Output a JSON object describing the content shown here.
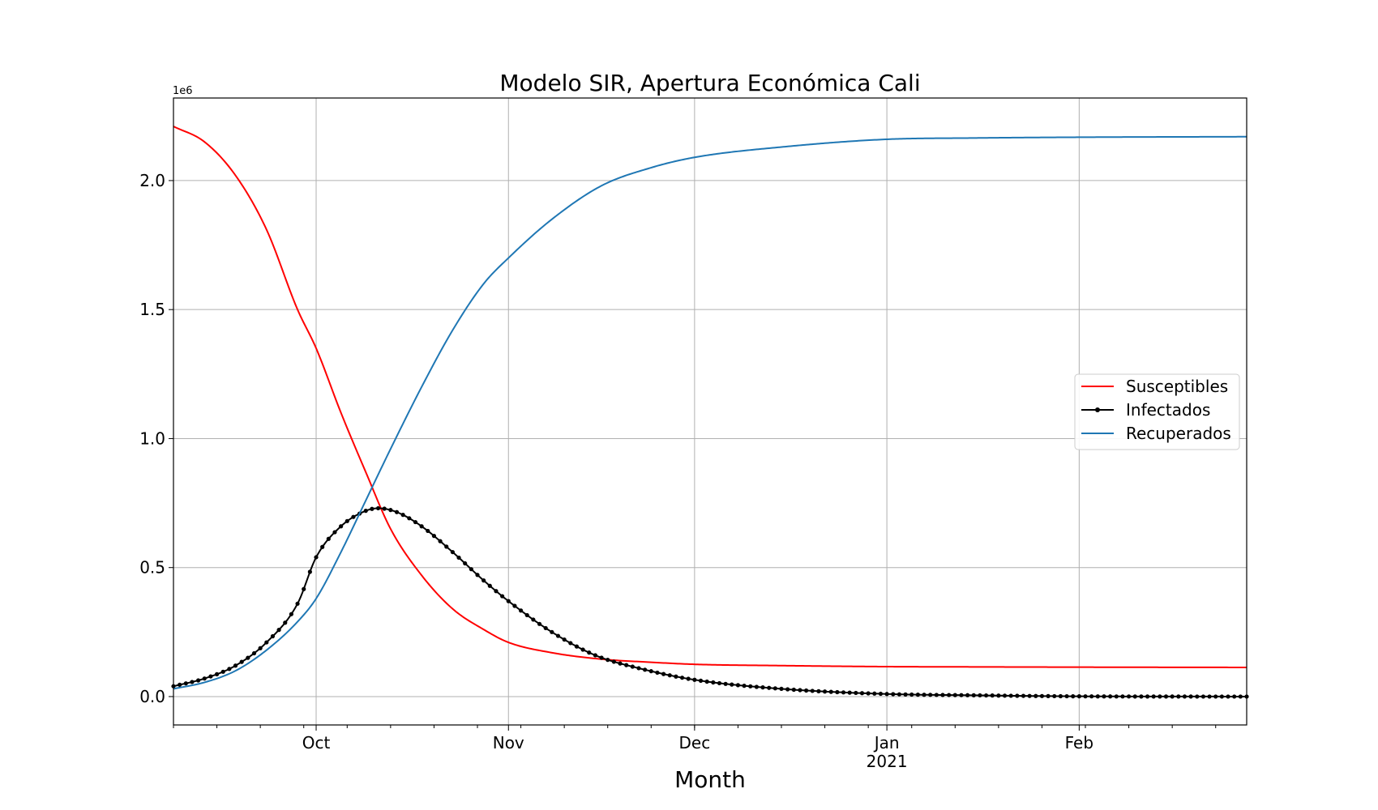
{
  "chart_data": {
    "type": "line",
    "title": "Modelo SIR, Apertura Económica Cali",
    "xlabel": "Month",
    "ylabel": "",
    "y_offset_label": "1e6",
    "x_start": "2020-09-08",
    "x_end": "2021-02-28",
    "xlim": [
      "2020-09-08",
      "2021-02-28"
    ],
    "ylim": [
      -110000,
      2320000
    ],
    "grid": true,
    "legend_position": "center-right",
    "y_ticks": [
      {
        "value": 0,
        "label": "0.0"
      },
      {
        "value": 500000,
        "label": "0.5"
      },
      {
        "value": 1000000,
        "label": "1.0"
      },
      {
        "value": 1500000,
        "label": "1.5"
      },
      {
        "value": 2000000,
        "label": "2.0"
      }
    ],
    "x_major_ticks": [
      {
        "date": "2020-10-01",
        "label": "Oct",
        "sublabel": ""
      },
      {
        "date": "2020-11-01",
        "label": "Nov",
        "sublabel": ""
      },
      {
        "date": "2020-12-01",
        "label": "Dec",
        "sublabel": ""
      },
      {
        "date": "2021-01-01",
        "label": "Jan",
        "sublabel": "2021"
      },
      {
        "date": "2021-02-01",
        "label": "Feb",
        "sublabel": ""
      }
    ],
    "series": [
      {
        "name": "Susceptibles",
        "color": "#ff0000",
        "marker": false,
        "points": [
          [
            "2020-09-08",
            2210000
          ],
          [
            "2020-09-13",
            2150000
          ],
          [
            "2020-09-18",
            2020000
          ],
          [
            "2020-09-23",
            1810000
          ],
          [
            "2020-09-28",
            1500000
          ],
          [
            "2020-10-01",
            1350000
          ],
          [
            "2020-10-05",
            1100000
          ],
          [
            "2020-10-09",
            870000
          ],
          [
            "2020-10-13",
            650000
          ],
          [
            "2020-10-18",
            470000
          ],
          [
            "2020-10-23",
            340000
          ],
          [
            "2020-10-28",
            260000
          ],
          [
            "2020-11-01",
            210000
          ],
          [
            "2020-11-08",
            170000
          ],
          [
            "2020-11-16",
            145000
          ],
          [
            "2020-11-24",
            133000
          ],
          [
            "2020-12-01",
            125000
          ],
          [
            "2020-12-15",
            120000
          ],
          [
            "2021-01-01",
            116000
          ],
          [
            "2021-01-15",
            115000
          ],
          [
            "2021-02-01",
            114000
          ],
          [
            "2021-02-28",
            113000
          ]
        ]
      },
      {
        "name": "Infectados",
        "color": "#000000",
        "marker": true,
        "points": [
          [
            "2020-09-08",
            40000
          ],
          [
            "2020-09-13",
            70000
          ],
          [
            "2020-09-18",
            120000
          ],
          [
            "2020-09-23",
            210000
          ],
          [
            "2020-09-28",
            360000
          ],
          [
            "2020-10-01",
            540000
          ],
          [
            "2020-10-05",
            660000
          ],
          [
            "2020-10-09",
            720000
          ],
          [
            "2020-10-11",
            730000
          ],
          [
            "2020-10-14",
            715000
          ],
          [
            "2020-10-18",
            660000
          ],
          [
            "2020-10-23",
            560000
          ],
          [
            "2020-10-28",
            450000
          ],
          [
            "2020-11-01",
            370000
          ],
          [
            "2020-11-08",
            250000
          ],
          [
            "2020-11-15",
            160000
          ],
          [
            "2020-11-22",
            110000
          ],
          [
            "2020-12-01",
            65000
          ],
          [
            "2020-12-15",
            30000
          ],
          [
            "2021-01-01",
            10000
          ],
          [
            "2021-01-15",
            5000
          ],
          [
            "2021-02-01",
            1000
          ],
          [
            "2021-02-28",
            0
          ]
        ]
      },
      {
        "name": "Recuperados",
        "color": "#1f77b4",
        "marker": false,
        "points": [
          [
            "2020-09-08",
            30000
          ],
          [
            "2020-09-13",
            55000
          ],
          [
            "2020-09-18",
            100000
          ],
          [
            "2020-09-23",
            180000
          ],
          [
            "2020-09-28",
            290000
          ],
          [
            "2020-10-01",
            380000
          ],
          [
            "2020-10-05",
            560000
          ],
          [
            "2020-10-09",
            760000
          ],
          [
            "2020-10-13",
            960000
          ],
          [
            "2020-10-18",
            1200000
          ],
          [
            "2020-10-23",
            1420000
          ],
          [
            "2020-10-28",
            1600000
          ],
          [
            "2020-11-01",
            1700000
          ],
          [
            "2020-11-08",
            1850000
          ],
          [
            "2020-11-16",
            1980000
          ],
          [
            "2020-11-24",
            2050000
          ],
          [
            "2020-12-01",
            2090000
          ],
          [
            "2020-12-15",
            2130000
          ],
          [
            "2021-01-01",
            2160000
          ],
          [
            "2021-01-15",
            2165000
          ],
          [
            "2021-02-01",
            2168000
          ],
          [
            "2021-02-28",
            2170000
          ]
        ]
      }
    ]
  }
}
